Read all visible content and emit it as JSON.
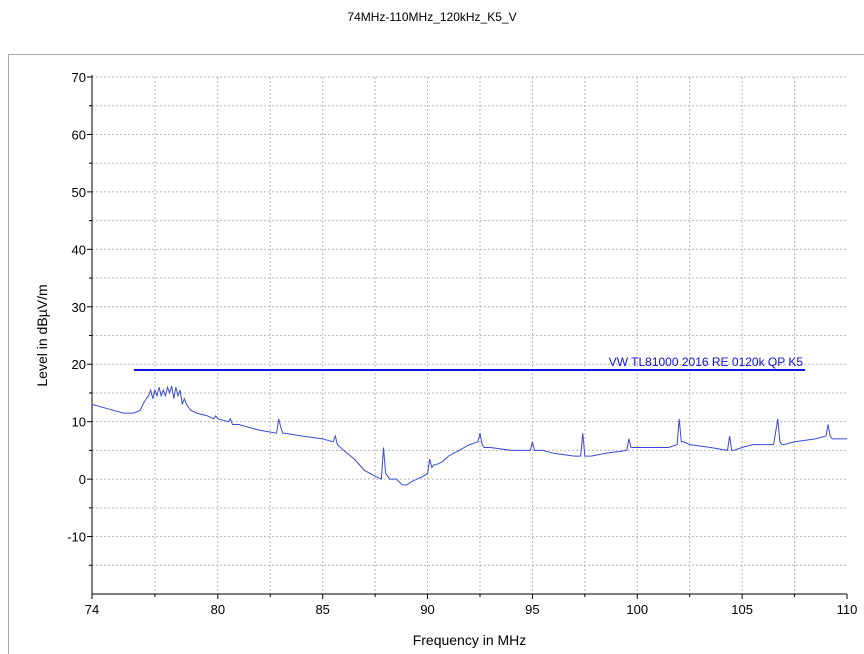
{
  "chart_data": {
    "type": "line",
    "title": "74MHz-110MHz_120kHz_K5_V",
    "xlabel": "Frequency in MHz",
    "ylabel": "Level in dBµV/m",
    "xlim": [
      74,
      110
    ],
    "ylim": [
      -20,
      70
    ],
    "x_ticks": [
      74,
      80,
      85,
      90,
      95,
      100,
      105,
      110
    ],
    "y_ticks": [
      -10,
      0,
      10,
      20,
      30,
      40,
      50,
      60,
      70
    ],
    "grid": true,
    "colors": {
      "measurement": "#3b4bd8",
      "limit": "#1010e0",
      "grid": "#b8b8b8"
    },
    "series": [
      {
        "name": "VW TL81000 2016 RE 0120k QP K5",
        "kind": "limit",
        "x": [
          76.0,
          108.0
        ],
        "y": [
          19,
          19
        ]
      },
      {
        "kind": "measurement",
        "x": [
          74.0,
          74.5,
          75.0,
          75.5,
          76.0,
          76.3,
          76.5,
          76.7,
          76.8,
          76.9,
          77.0,
          77.1,
          77.2,
          77.3,
          77.4,
          77.5,
          77.6,
          77.7,
          77.8,
          77.9,
          78.0,
          78.1,
          78.2,
          78.3,
          78.4,
          78.5,
          78.7,
          79.0,
          79.5,
          79.8,
          79.9,
          80.0,
          80.5,
          80.6,
          80.7,
          81.0,
          82.0,
          82.8,
          82.9,
          83.0,
          83.1,
          83.2,
          84.0,
          85.0,
          85.5,
          85.6,
          85.7,
          86.0,
          86.5,
          87.0,
          87.5,
          87.8,
          87.9,
          88.0,
          88.1,
          88.2,
          88.5,
          88.8,
          89.0,
          89.2,
          89.5,
          89.8,
          90.0,
          90.1,
          90.2,
          90.3,
          90.4,
          90.7,
          91.0,
          91.5,
          92.0,
          92.4,
          92.5,
          92.6,
          92.7,
          92.8,
          93.0,
          94.0,
          94.9,
          95.0,
          95.1,
          95.5,
          96.0,
          97.0,
          97.3,
          97.4,
          97.5,
          97.6,
          97.8,
          98.5,
          99.5,
          99.6,
          99.7,
          99.8,
          100.5,
          101.5,
          101.9,
          102.0,
          102.1,
          102.2,
          102.5,
          103.5,
          104.3,
          104.4,
          104.5,
          104.6,
          105.0,
          105.5,
          106.5,
          106.7,
          106.8,
          106.9,
          107.0,
          107.5,
          108.5,
          109.0,
          109.1,
          109.2,
          109.3,
          109.5,
          110.0
        ],
        "y": [
          13,
          12.5,
          12,
          11.5,
          11.5,
          12,
          13.5,
          14.5,
          15.5,
          14,
          15.5,
          14.5,
          16,
          14.5,
          15.5,
          14.5,
          16,
          15,
          16.2,
          14,
          16,
          14.5,
          15.5,
          13,
          14,
          13,
          12,
          11.5,
          11,
          10.5,
          11,
          10.5,
          10,
          10.5,
          9.5,
          9.5,
          8.5,
          8,
          10.5,
          9,
          8,
          8,
          7.5,
          7,
          6.5,
          7.5,
          6,
          5,
          3.5,
          1.5,
          0.5,
          0,
          5.5,
          1,
          0.5,
          0,
          0,
          -1,
          -1,
          -0.5,
          0,
          0.5,
          1,
          3.5,
          2,
          2.5,
          2.5,
          3,
          4,
          5,
          6,
          6.5,
          8,
          6,
          5.5,
          5.5,
          5.5,
          5,
          5,
          6.5,
          5,
          5,
          4.5,
          4,
          4,
          8,
          4,
          4,
          4,
          4.5,
          5,
          7,
          5.5,
          5.5,
          5.5,
          5.5,
          6,
          10.5,
          6.5,
          6.5,
          6,
          5.5,
          5,
          7.5,
          5,
          5,
          5.5,
          6,
          6,
          10.5,
          6.5,
          6,
          6,
          6.5,
          7,
          7.5,
          9.5,
          7.5,
          7,
          7,
          7
        ]
      }
    ]
  }
}
